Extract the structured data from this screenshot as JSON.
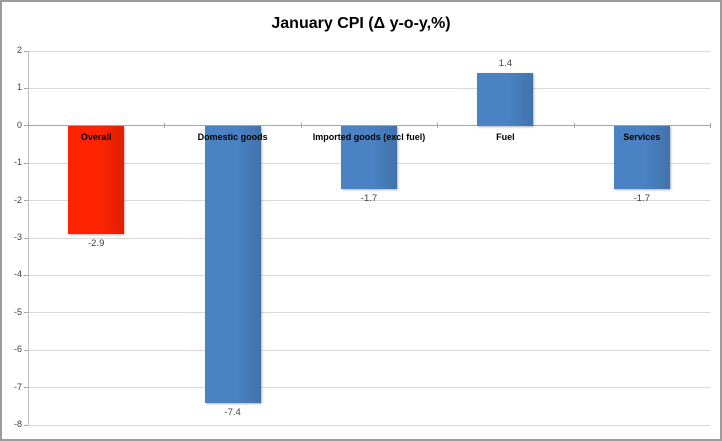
{
  "window": {
    "background": "#ffffff",
    "border_color": "#9c9c9c"
  },
  "chart_data": {
    "type": "bar",
    "title": "January CPI (Δ y-o-y,%)",
    "categories": [
      "Overall",
      "Domestic goods",
      "Imported goods (excl fuel)",
      "Fuel",
      "Services"
    ],
    "values": [
      -2.9,
      -7.4,
      -1.7,
      1.4,
      -1.7
    ],
    "value_labels": [
      "-2.9",
      "-7.4",
      "-1.7",
      "1.4",
      "-1.7"
    ],
    "bar_colors": [
      "#fe2400",
      "#4a82c4",
      "#4a82c4",
      "#4a82c4",
      "#4a82c4"
    ],
    "xlabel": "",
    "ylabel": "",
    "ylim": [
      -8,
      2
    ],
    "yticks": [
      2,
      1,
      0,
      -1,
      -2,
      -3,
      -4,
      -5,
      -6,
      -7,
      -8
    ],
    "grid": true,
    "legend_position": "none",
    "category_label_position": "below zero axis",
    "style_colors": {
      "bar_red": "#fe2400",
      "bar_blue": "#4a82c4",
      "gridline": "#d9d9d9",
      "zero_line": "#a6a6a6",
      "axis_line": "#bfbfbf",
      "tick_mark": "#a6a6a6",
      "label_text": "#404040",
      "title_text": "#000000"
    }
  }
}
